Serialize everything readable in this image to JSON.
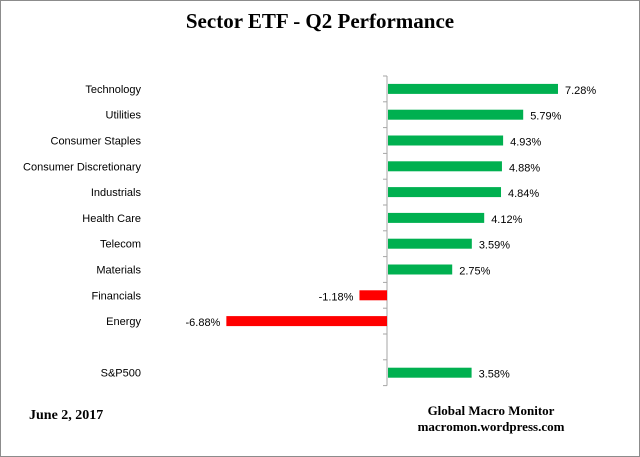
{
  "chart_data": {
    "type": "bar",
    "orientation": "horizontal",
    "title": "Sector ETF - Q2 Performance",
    "categories": [
      "Technology",
      "Utilities",
      "Consumer Staples",
      "Consumer Discretionary",
      "Industrials",
      "Health Care",
      "Telecom",
      "Materials",
      "Financials",
      "Energy",
      "",
      "S&P500"
    ],
    "values": [
      7.28,
      5.79,
      4.93,
      4.88,
      4.84,
      4.12,
      3.59,
      2.75,
      -1.18,
      -6.88,
      null,
      3.58
    ],
    "labels": [
      "7.28%",
      "5.79%",
      "4.93%",
      "4.88%",
      "4.84%",
      "4.12%",
      "3.59%",
      "2.75%",
      "-1.18%",
      "-6.88%",
      "",
      "3.58%"
    ],
    "xlim": [
      -7,
      9.5
    ],
    "positive_color": "#00b050",
    "negative_color": "#ff0000",
    "grid": false,
    "legend": "none"
  },
  "footer": {
    "date": "June 2,  2017",
    "source_line1": "Global Macro Monitor",
    "source_line2": "macromon.wordpress.com"
  }
}
